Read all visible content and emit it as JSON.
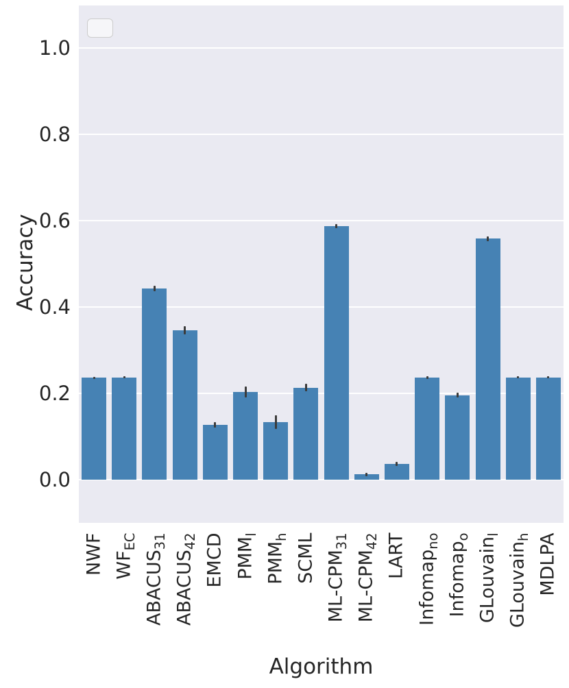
{
  "chart_data": {
    "type": "bar",
    "title": "",
    "xlabel": "Algorithm",
    "ylabel": "Accuracy",
    "ylim": [
      -0.1,
      1.1
    ],
    "yticks": [
      0.0,
      0.2,
      0.4,
      0.6,
      0.8,
      1.0
    ],
    "ytick_labels": [
      "0.0",
      "0.2",
      "0.4",
      "0.6",
      "0.8",
      "1.0"
    ],
    "grid": true,
    "legend_position": "upper-left-empty-box",
    "bar_color": "#4682b4",
    "error_color": "#3b3b3b",
    "plot_bg": "#eaeaf2",
    "categories": [
      {
        "main": "NWF",
        "sub": ""
      },
      {
        "main": "WF",
        "sub": "EC"
      },
      {
        "main": "ABACUS",
        "sub": "31"
      },
      {
        "main": "ABACUS",
        "sub": "42"
      },
      {
        "main": "EMCD",
        "sub": ""
      },
      {
        "main": "PMM",
        "sub": "l"
      },
      {
        "main": "PMM",
        "sub": "h"
      },
      {
        "main": "SCML",
        "sub": ""
      },
      {
        "main": "ML-CPM",
        "sub": "31"
      },
      {
        "main": "ML-CPM",
        "sub": "42"
      },
      {
        "main": "LART",
        "sub": ""
      },
      {
        "main": "Infomap",
        "sub": "no"
      },
      {
        "main": "Infomap",
        "sub": "o"
      },
      {
        "main": "GLouvain",
        "sub": "l"
      },
      {
        "main": "GLouvain",
        "sub": "h"
      },
      {
        "main": "MDLPA",
        "sub": ""
      }
    ],
    "values": [
      0.236,
      0.237,
      0.443,
      0.346,
      0.127,
      0.203,
      0.133,
      0.213,
      0.587,
      0.012,
      0.036,
      0.237,
      0.196,
      0.558,
      0.237,
      0.237
    ],
    "errors": [
      0.002,
      0.002,
      0.006,
      0.01,
      0.006,
      0.013,
      0.016,
      0.009,
      0.005,
      0.004,
      0.005,
      0.003,
      0.005,
      0.005,
      0.002,
      0.002
    ]
  }
}
